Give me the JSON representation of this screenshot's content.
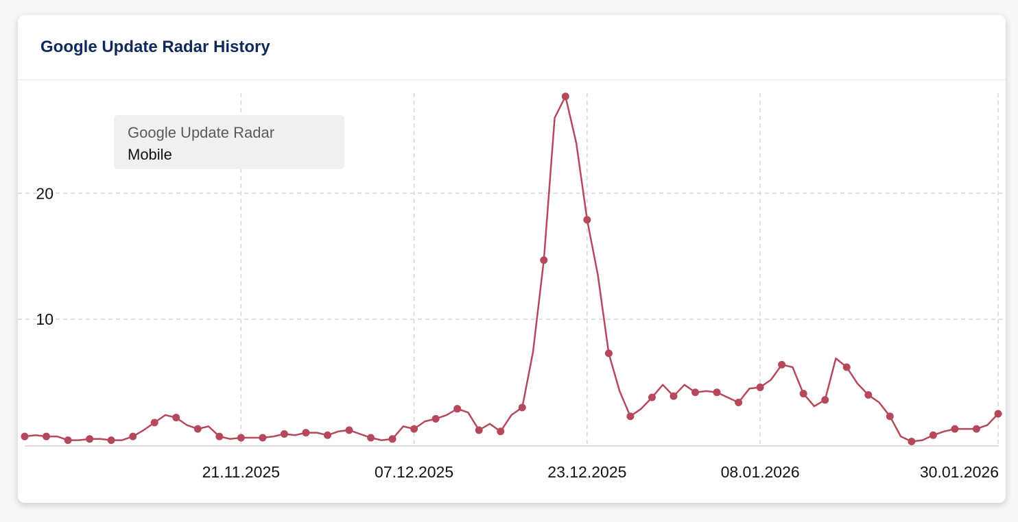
{
  "card": {
    "title": "Google Update Radar History"
  },
  "chart_data": {
    "type": "line",
    "title": "Google Update Radar History",
    "legend": {
      "title": "Google Update Radar",
      "placement": "top-left",
      "entries": [
        "Mobile"
      ]
    },
    "color": "#b5485a",
    "grid": true,
    "ylim": [
      0,
      28.5
    ],
    "yticks": [
      10,
      20
    ],
    "xlim": [
      "2025-11-01",
      "2026-01-30"
    ],
    "xticks": [
      "21.11.2025",
      "07.12.2025",
      "23.12.2025",
      "08.01.2026",
      "30.01.2026"
    ],
    "xtick_dates": [
      "2025-11-21",
      "2025-12-07",
      "2025-12-23",
      "2026-01-08",
      "2026-01-30"
    ],
    "series": [
      {
        "name": "Mobile",
        "x": [
          "2025-11-01",
          "2025-11-02",
          "2025-11-03",
          "2025-11-04",
          "2025-11-05",
          "2025-11-06",
          "2025-11-07",
          "2025-11-08",
          "2025-11-09",
          "2025-11-10",
          "2025-11-11",
          "2025-11-12",
          "2025-11-13",
          "2025-11-14",
          "2025-11-15",
          "2025-11-16",
          "2025-11-17",
          "2025-11-18",
          "2025-11-19",
          "2025-11-20",
          "2025-11-21",
          "2025-11-22",
          "2025-11-23",
          "2025-11-24",
          "2025-11-25",
          "2025-11-26",
          "2025-11-27",
          "2025-11-28",
          "2025-11-29",
          "2025-11-30",
          "2025-12-01",
          "2025-12-02",
          "2025-12-03",
          "2025-12-04",
          "2025-12-05",
          "2025-12-06",
          "2025-12-07",
          "2025-12-08",
          "2025-12-09",
          "2025-12-10",
          "2025-12-11",
          "2025-12-12",
          "2025-12-13",
          "2025-12-14",
          "2025-12-15",
          "2025-12-16",
          "2025-12-17",
          "2025-12-18",
          "2025-12-19",
          "2025-12-20",
          "2025-12-21",
          "2025-12-22",
          "2025-12-23",
          "2025-12-24",
          "2025-12-25",
          "2025-12-26",
          "2025-12-27",
          "2025-12-28",
          "2025-12-29",
          "2025-12-30",
          "2025-12-31",
          "2026-01-01",
          "2026-01-02",
          "2026-01-03",
          "2026-01-04",
          "2026-01-05",
          "2026-01-06",
          "2026-01-07",
          "2026-01-08",
          "2026-01-09",
          "2026-01-10",
          "2026-01-11",
          "2026-01-12",
          "2026-01-13",
          "2026-01-14",
          "2026-01-15",
          "2026-01-16",
          "2026-01-17",
          "2026-01-18",
          "2026-01-19",
          "2026-01-20",
          "2026-01-21",
          "2026-01-22",
          "2026-01-23",
          "2026-01-24",
          "2026-01-25",
          "2026-01-26",
          "2026-01-27",
          "2026-01-28",
          "2026-01-29",
          "2026-01-30"
        ],
        "values": [
          0.7,
          0.8,
          0.7,
          0.7,
          0.4,
          0.4,
          0.5,
          0.5,
          0.4,
          0.4,
          0.7,
          1.2,
          1.8,
          2.4,
          2.2,
          1.6,
          1.3,
          1.5,
          0.7,
          0.5,
          0.6,
          0.6,
          0.6,
          0.7,
          0.9,
          0.8,
          1.0,
          1.0,
          0.8,
          1.1,
          1.2,
          0.9,
          0.6,
          0.4,
          0.5,
          1.5,
          1.3,
          1.9,
          2.1,
          2.4,
          2.9,
          2.6,
          1.2,
          1.7,
          1.1,
          2.4,
          3.0,
          7.4,
          14.7,
          26.0,
          27.7,
          24.0,
          17.9,
          13.5,
          7.3,
          4.3,
          2.3,
          2.9,
          3.8,
          4.8,
          3.9,
          4.8,
          4.2,
          4.3,
          4.2,
          3.8,
          3.4,
          4.5,
          4.6,
          5.2,
          6.4,
          6.2,
          4.1,
          3.1,
          3.6,
          6.9,
          6.2,
          4.9,
          4.0,
          3.4,
          2.3,
          0.7,
          0.3,
          0.4,
          0.8,
          1.1,
          1.3,
          1.3,
          1.3,
          1.6,
          2.5
        ],
        "markers": [
          0,
          2,
          4,
          6,
          8,
          10,
          12,
          14,
          16,
          18,
          20,
          22,
          24,
          26,
          28,
          30,
          32,
          34,
          36,
          38,
          40,
          42,
          44,
          46,
          48,
          50,
          52,
          54,
          56,
          58,
          60,
          62,
          64,
          66,
          68,
          70,
          72,
          74,
          76,
          78,
          80,
          82,
          84,
          86,
          88,
          90
        ]
      }
    ]
  }
}
